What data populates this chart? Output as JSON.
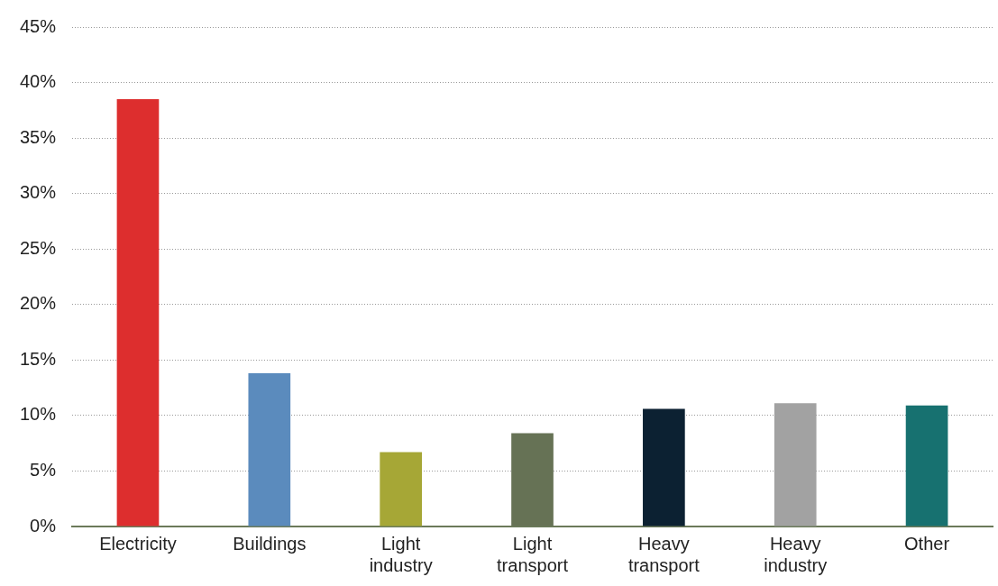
{
  "chart_data": {
    "type": "bar",
    "categories": [
      "Electricity",
      "Buildings",
      "Light industry",
      "Light transport",
      "Heavy transport",
      "Heavy industry",
      "Other"
    ],
    "values": [
      38.5,
      13.8,
      6.7,
      8.4,
      10.6,
      11.1,
      10.9
    ],
    "colors": [
      "#dd2e2e",
      "#5b8bbd",
      "#a6a736",
      "#667255",
      "#0c2132",
      "#a2a2a2",
      "#177170"
    ],
    "ylim": [
      0,
      45
    ],
    "yticks": [
      {
        "value": 0,
        "label": "0%"
      },
      {
        "value": 5,
        "label": "5%"
      },
      {
        "value": 10,
        "label": "10%"
      },
      {
        "value": 15,
        "label": "15%"
      },
      {
        "value": 20,
        "label": "20%"
      },
      {
        "value": 25,
        "label": "25%"
      },
      {
        "value": 30,
        "label": "30%"
      },
      {
        "value": 35,
        "label": "35%"
      },
      {
        "value": 40,
        "label": "40%"
      },
      {
        "value": 45,
        "label": "45%"
      }
    ],
    "grid": "y"
  }
}
